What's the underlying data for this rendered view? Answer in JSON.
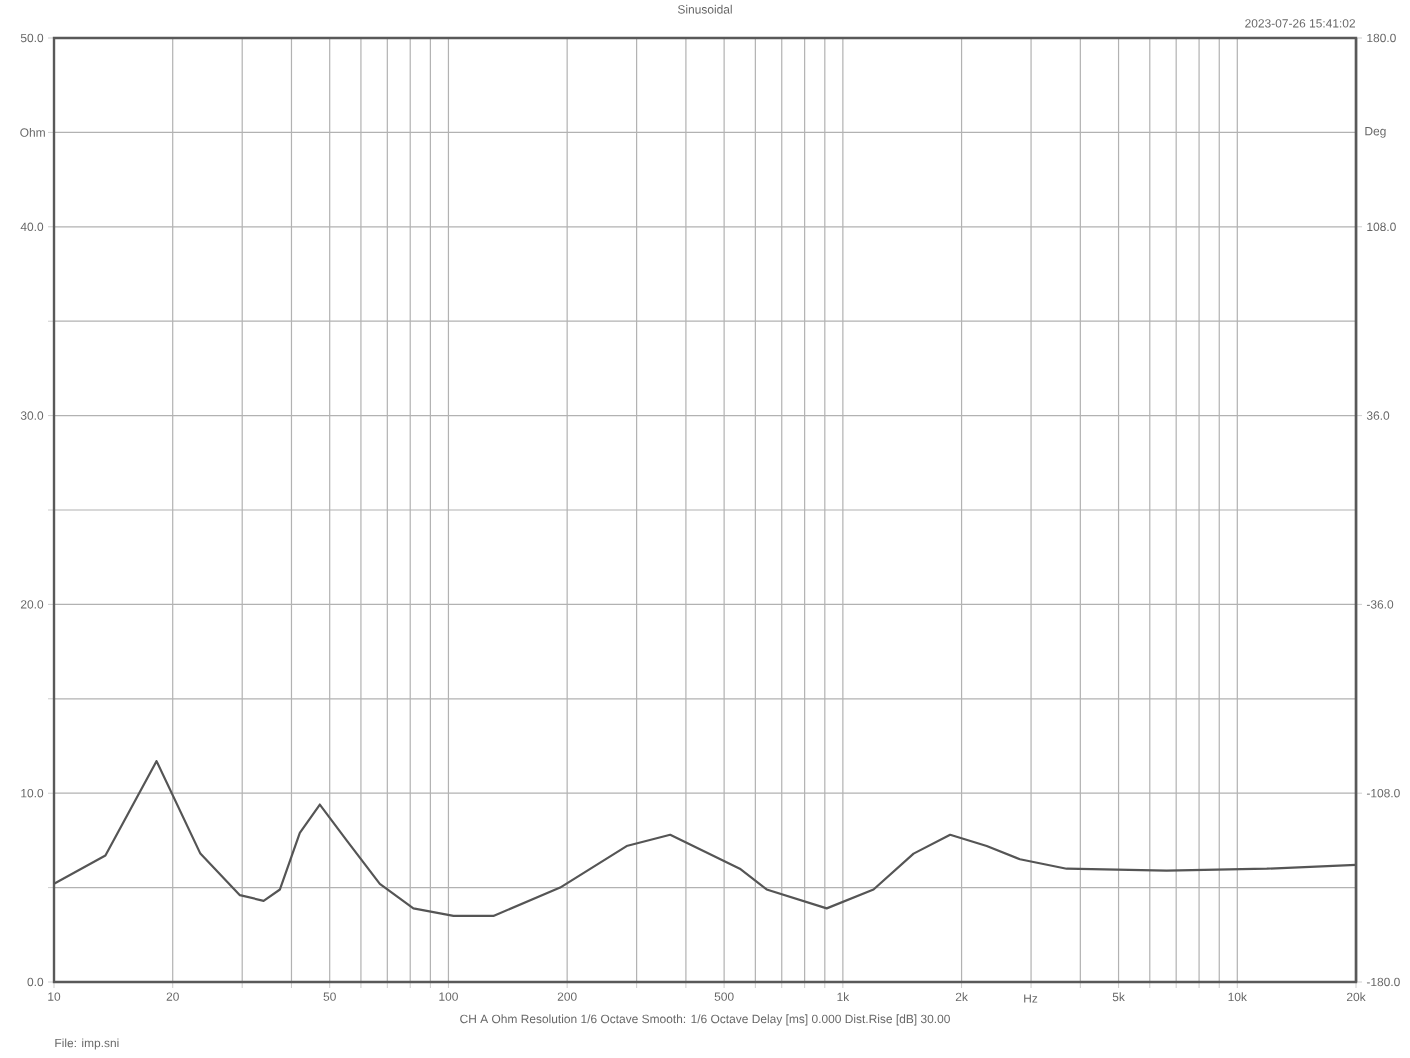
{
  "chart_data": {
    "type": "line",
    "title": "Sinusoidal",
    "annotations": [
      "2023-07-26 15:41:02",
      "CH A   Ohm   Resolution 1/6 Octave   Smooth: 1/6 Octave   Delay [ms] 0.000   Dist.Rise [dB] 30.00",
      "File: imp.sni"
    ],
    "xlabel": "Hz",
    "ylabel": "Ohm",
    "y2label": "Deg",
    "log": "x",
    "grid": true,
    "marker": "none",
    "line_style": "solid",
    "xlim": [
      10,
      20000
    ],
    "xticks": [
      10,
      20,
      {
        "value": 30,
        "label": null
      },
      {
        "value": 40,
        "label": null
      },
      50,
      {
        "value": 60,
        "label": null
      },
      {
        "value": 70,
        "label": null
      },
      {
        "value": 80,
        "label": null
      },
      {
        "value": 90,
        "label": null
      },
      100,
      200,
      {
        "value": 300,
        "label": null
      },
      {
        "value": 400,
        "label": null
      },
      500,
      {
        "value": 600,
        "label": null
      },
      {
        "value": 700,
        "label": null
      },
      {
        "value": 800,
        "label": null
      },
      {
        "value": 900,
        "label": null
      },
      {
        "value": 1000,
        "label": "1k"
      },
      {
        "value": 2000,
        "label": "2k"
      },
      {
        "value": 3000,
        "label": null
      },
      {
        "value": 4000,
        "label": null
      },
      {
        "value": 5000,
        "label": "5k"
      },
      {
        "value": 6000,
        "label": null
      },
      {
        "value": 7000,
        "label": null
      },
      {
        "value": 8000,
        "label": null
      },
      {
        "value": 9000,
        "label": null
      },
      {
        "value": 10000,
        "label": "10k"
      },
      {
        "value": 20000,
        "label": "20k"
      }
    ],
    "ylim": [
      0,
      50
    ],
    "yticks": [
      {
        "value": 0,
        "label": "0.0"
      },
      {
        "value": 5,
        "label": null
      },
      {
        "value": 10,
        "label": "10.0"
      },
      {
        "value": 15,
        "label": null
      },
      {
        "value": 20,
        "label": "20.0"
      },
      {
        "value": 25,
        "label": null
      },
      {
        "value": 30,
        "label": "30.0"
      },
      {
        "value": 35,
        "label": null
      },
      {
        "value": 40,
        "label": "40.0"
      },
      {
        "value": 45,
        "label": null
      },
      {
        "value": 50,
        "label": "50.0"
      }
    ],
    "y2lim": [
      -180,
      180
    ],
    "y2ticks": [
      {
        "value": -180,
        "label": "-180.0"
      },
      {
        "value": -108,
        "label": "-108.0"
      },
      {
        "value": -36,
        "label": "-36.0"
      },
      {
        "value": 36,
        "label": "36.0"
      },
      {
        "value": 108,
        "label": "108.0"
      },
      {
        "value": 180,
        "label": "180.0"
      }
    ],
    "series": [
      {
        "color": "#555555",
        "x": [
          10,
          13.5,
          18.2,
          23.5,
          29.6,
          34,
          37.4,
          42,
          47.2,
          55.2,
          67,
          81.5,
          103,
          130,
          192,
          283,
          365,
          548,
          641,
          910,
          1196,
          1511,
          1871,
          2316,
          2812,
          3692,
          6620,
          11880,
          20000
        ],
        "values": [
          5.2,
          6.7,
          11.7,
          6.8,
          4.6,
          4.3,
          4.9,
          7.9,
          9.4,
          7.5,
          5.2,
          3.9,
          3.5,
          3.5,
          5.0,
          7.2,
          7.8,
          6.0,
          4.9,
          3.9,
          4.9,
          6.8,
          7.8,
          7.2,
          6.5,
          6.0,
          5.9,
          6.0,
          6.2
        ]
      }
    ]
  }
}
